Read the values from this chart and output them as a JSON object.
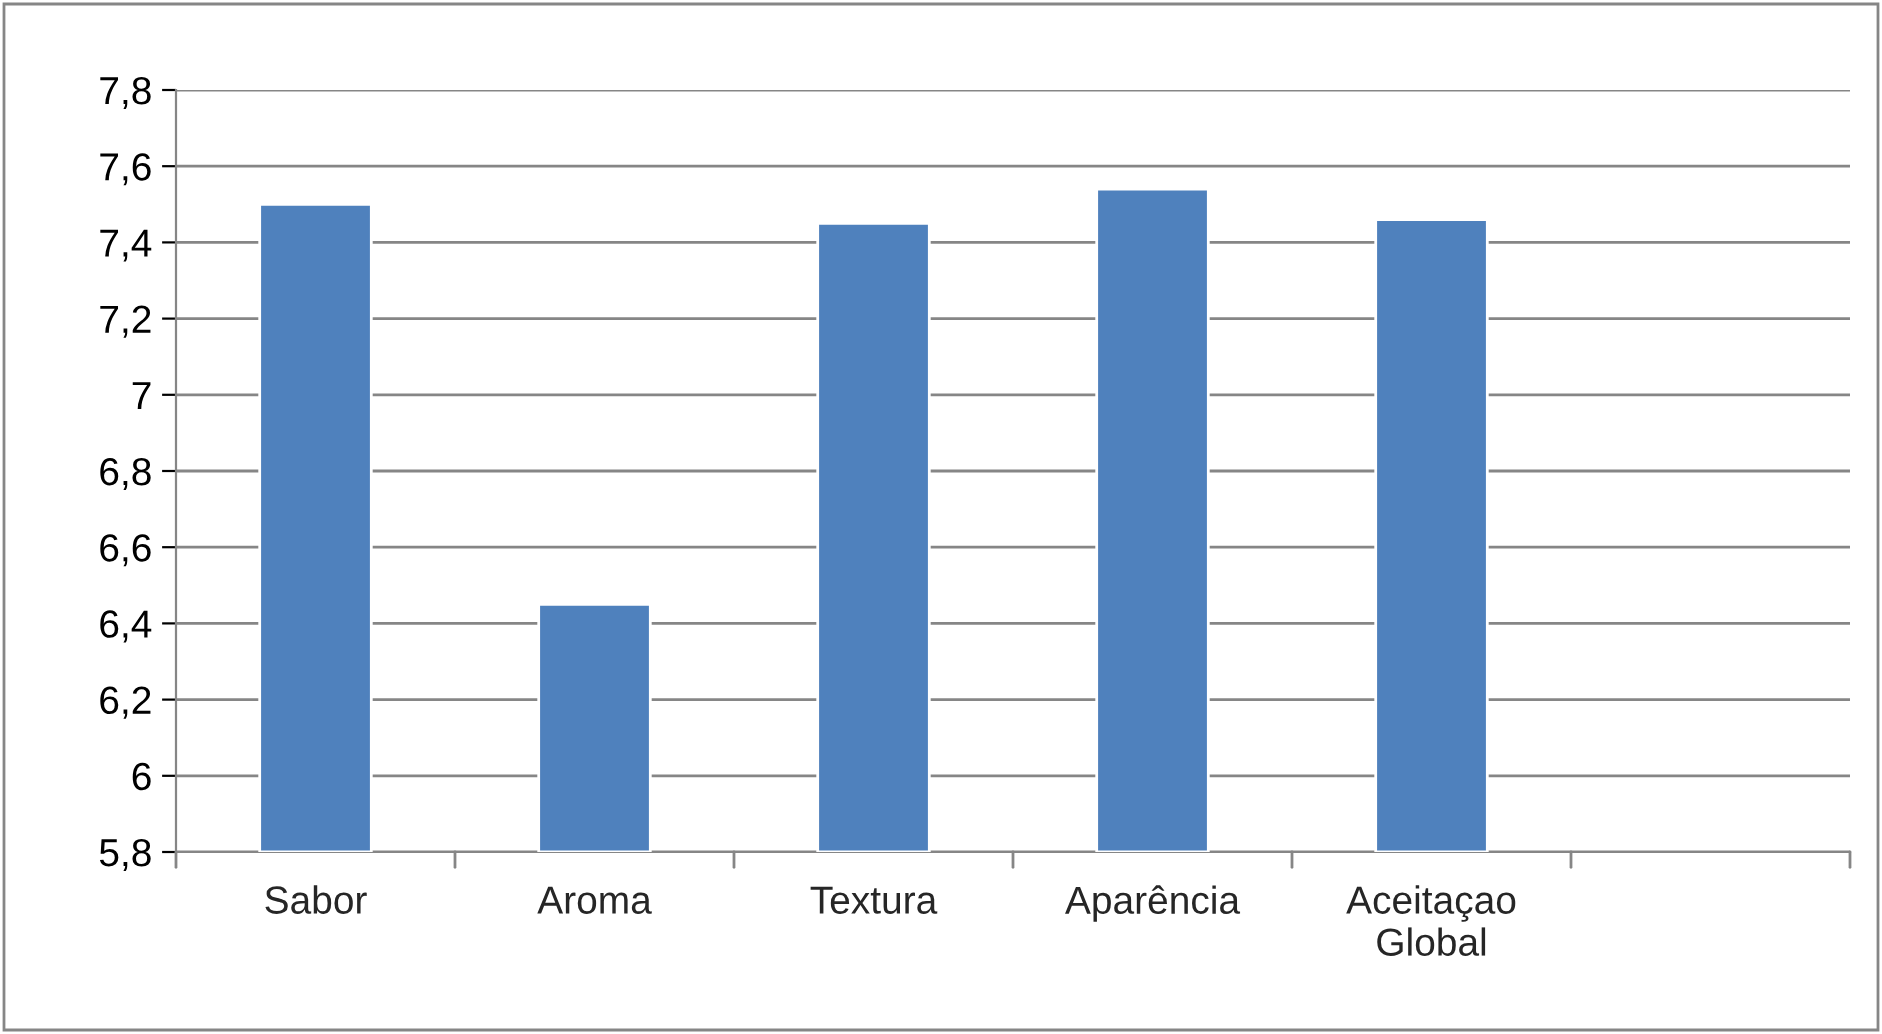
{
  "chart_data": {
    "type": "bar",
    "categories": [
      "Sabor",
      "Aroma",
      "Textura",
      "Aparência",
      "Aceitaçao\nGlobal",
      null
    ],
    "values": [
      7.5,
      6.45,
      7.45,
      7.54,
      7.46,
      null
    ],
    "color": "#4f81bd",
    "ylim": [
      5.8,
      7.8
    ],
    "yticks": [
      {
        "value": 5.8,
        "label": "5,8"
      },
      {
        "value": 6,
        "label": "6"
      },
      {
        "value": 6.2,
        "label": "6,2"
      },
      {
        "value": 6.4,
        "label": "6,4"
      },
      {
        "value": 6.6,
        "label": "6,6"
      },
      {
        "value": 6.8,
        "label": "6,8"
      },
      {
        "value": 7,
        "label": "7"
      },
      {
        "value": 7.2,
        "label": "7,2"
      },
      {
        "value": 7.4,
        "label": "7,4"
      },
      {
        "value": 7.6,
        "label": "7,6"
      },
      {
        "value": 7.8,
        "label": "7,8"
      }
    ],
    "grid": "y",
    "legend": false
  }
}
